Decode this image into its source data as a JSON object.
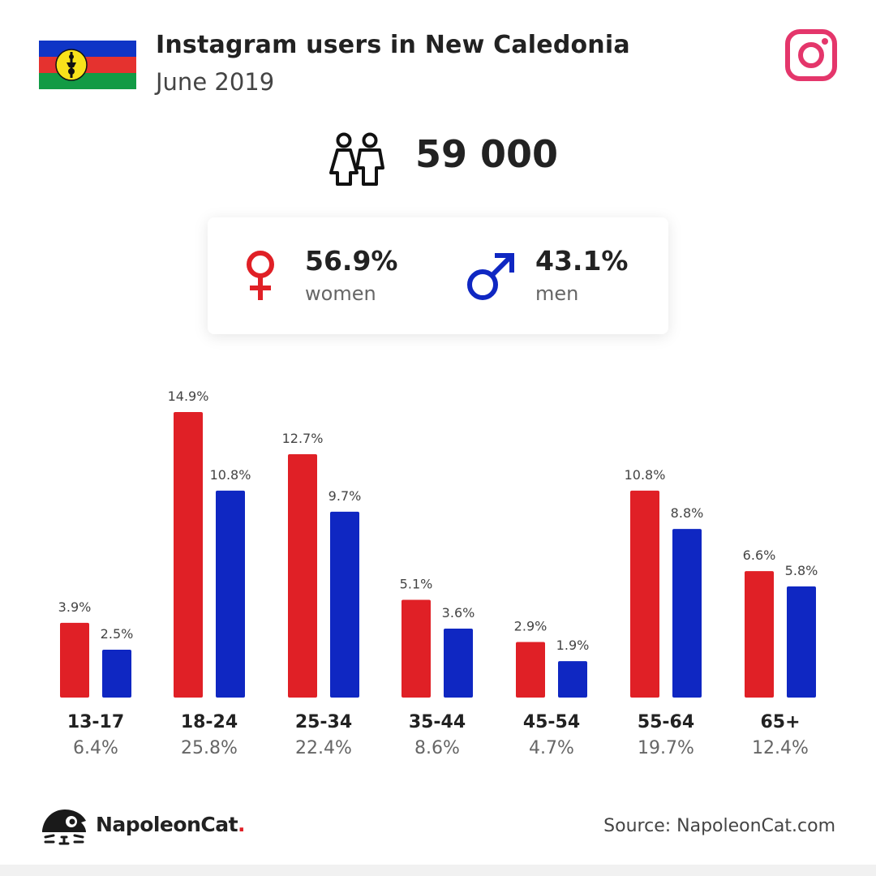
{
  "header": {
    "title": "Instagram users in New Caledonia",
    "subtitle": "June 2019"
  },
  "total_users": "59 000",
  "gender": {
    "women_pct": "56.9%",
    "women_label": "women",
    "men_pct": "43.1%",
    "men_label": "men"
  },
  "colors": {
    "women": "#e02026",
    "men": "#0f27c2",
    "instagram": "#e4366b"
  },
  "icons": [
    "new-caledonia-flag-icon",
    "instagram-icon",
    "users-icon",
    "female-icon",
    "male-icon",
    "napoleoncat-logo-icon"
  ],
  "chart_data": {
    "type": "bar",
    "categories": [
      "13-17",
      "18-24",
      "25-34",
      "35-44",
      "45-54",
      "55-64",
      "65+"
    ],
    "category_totals": [
      "6.4%",
      "25.8%",
      "22.4%",
      "8.6%",
      "4.7%",
      "19.7%",
      "12.4%"
    ],
    "series": [
      {
        "values": [
          3.9,
          14.9,
          12.7,
          5.1,
          2.9,
          10.8,
          6.6
        ],
        "labels": [
          "3.9%",
          "14.9%",
          "12.7%",
          "5.1%",
          "2.9%",
          "10.8%",
          "6.6%"
        ],
        "color": "#e02026"
      },
      {
        "values": [
          2.5,
          10.8,
          9.7,
          3.6,
          1.9,
          8.8,
          5.8
        ],
        "labels": [
          "2.5%",
          "10.8%",
          "9.7%",
          "3.6%",
          "1.9%",
          "8.8%",
          "5.8%"
        ],
        "color": "#0f27c2"
      }
    ],
    "title": "",
    "xlabel": "",
    "ylabel": "",
    "ylim": [
      0,
      14.9
    ],
    "grid": false,
    "legend": "none"
  },
  "footer": {
    "brand_name": "NapoleonCat",
    "brand_dot": ".",
    "source": "Source: NapoleonCat.com"
  }
}
